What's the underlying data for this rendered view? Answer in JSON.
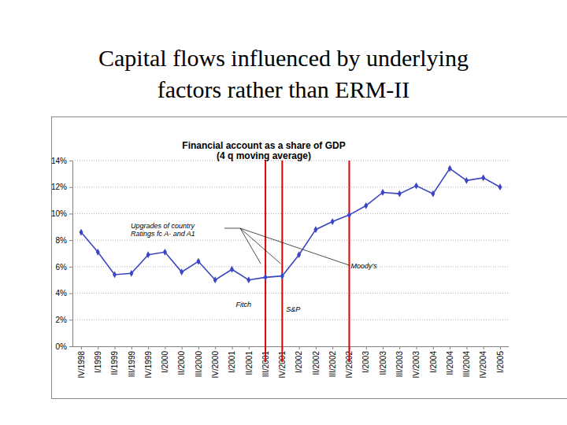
{
  "slide_title": [
    "Capital flows influenced by underlying",
    "factors rather than ERM-II"
  ],
  "chart_data": {
    "type": "line",
    "title": "Financial account as a share of GDP",
    "subtitle": "(4 q moving average)",
    "categories": [
      "IV/1998",
      "I/1999",
      "II/1999",
      "III/1999",
      "IV/1999",
      "I/2000",
      "II/2000",
      "III/2000",
      "IV/2000",
      "I/2001",
      "II/2001",
      "III/2001",
      "IV/2001",
      "I/2002",
      "II/2002",
      "III/2002",
      "IV/2002",
      "I/2003",
      "II/2003",
      "III/2003",
      "IV/2003",
      "I/2004",
      "II/2004",
      "III/2004",
      "IV/2004",
      "I/2005"
    ],
    "series": [
      {
        "color": "#3b45c4",
        "marker": "diamond",
        "line_style": "solid",
        "values": [
          8.6,
          7.1,
          5.4,
          5.5,
          6.9,
          7.1,
          5.6,
          6.4,
          5.0,
          5.8,
          5.0,
          5.2,
          5.3,
          6.9,
          8.8,
          9.4,
          9.9,
          10.6,
          11.6,
          11.5,
          12.1,
          11.5,
          13.4,
          12.5,
          12.7,
          12.0
        ]
      }
    ],
    "ylim": [
      0,
      14
    ],
    "yticks": [
      {
        "value": 0,
        "label": "0%"
      },
      {
        "value": 2,
        "label": "2%"
      },
      {
        "value": 4,
        "label": "4%"
      },
      {
        "value": 6,
        "label": "6%"
      },
      {
        "value": 8,
        "label": "8%"
      },
      {
        "value": 10,
        "label": "10%"
      },
      {
        "value": 12,
        "label": "12%"
      },
      {
        "value": 14,
        "label": "14%"
      }
    ],
    "grid": true,
    "annotation": [
      "Upgrades of country",
      "Ratings fc A- and A1"
    ],
    "events": [
      {
        "category": "III/2001",
        "label": "Fitch",
        "color": "#e00000"
      },
      {
        "category": "IV/2001",
        "label": "S&P",
        "color": "#e00000"
      },
      {
        "category": "IV/2002",
        "label": "Moody's",
        "color": "#e00000"
      }
    ]
  }
}
